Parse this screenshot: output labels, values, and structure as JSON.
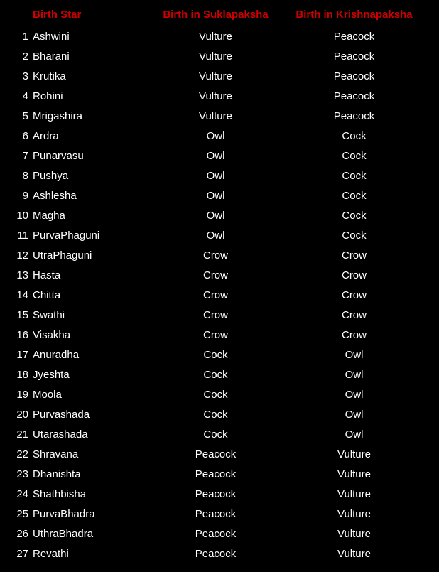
{
  "headers": {
    "star": "Birth Star",
    "sukla": "Birth in Suklapaksha",
    "krishna": "Birth in Krishnapaksha"
  },
  "rows": [
    {
      "num": "1",
      "star": "Ashwini",
      "sukla": "Vulture",
      "krishna": "Peacock"
    },
    {
      "num": "2",
      "star": "Bharani",
      "sukla": "Vulture",
      "krishna": "Peacock"
    },
    {
      "num": "3",
      "star": "Krutika",
      "sukla": "Vulture",
      "krishna": "Peacock"
    },
    {
      "num": "4",
      "star": "Rohini",
      "sukla": "Vulture",
      "krishna": "Peacock"
    },
    {
      "num": "5",
      "star": "Mrigashira",
      "sukla": "Vulture",
      "krishna": "Peacock"
    },
    {
      "num": "6",
      "star": "Ardra",
      "sukla": "Owl",
      "krishna": "Cock"
    },
    {
      "num": "7",
      "star": "Punarvasu",
      "sukla": "Owl",
      "krishna": "Cock"
    },
    {
      "num": "8",
      "star": "Pushya",
      "sukla": "Owl",
      "krishna": "Cock"
    },
    {
      "num": "9",
      "star": "Ashlesha",
      "sukla": "Owl",
      "krishna": "Cock"
    },
    {
      "num": "10",
      "star": "Magha",
      "sukla": "Owl",
      "krishna": "Cock"
    },
    {
      "num": "11",
      "star": "PurvaPhaguni",
      "sukla": "Owl",
      "krishna": "Cock"
    },
    {
      "num": "12",
      "star": "UtraPhaguni",
      "sukla": "Crow",
      "krishna": "Crow"
    },
    {
      "num": "13",
      "star": "Hasta",
      "sukla": "Crow",
      "krishna": "Crow"
    },
    {
      "num": "14",
      "star": "Chitta",
      "sukla": "Crow",
      "krishna": "Crow"
    },
    {
      "num": "15",
      "star": "Swathi",
      "sukla": "Crow",
      "krishna": "Crow"
    },
    {
      "num": "16",
      "star": "Visakha",
      "sukla": "Crow",
      "krishna": "Crow"
    },
    {
      "num": "17",
      "star": "Anuradha",
      "sukla": "Cock",
      "krishna": "Owl"
    },
    {
      "num": "18",
      "star": "Jyeshta",
      "sukla": "Cock",
      "krishna": "Owl"
    },
    {
      "num": "19",
      "star": "Moola",
      "sukla": "Cock",
      "krishna": "Owl"
    },
    {
      "num": "20",
      "star": "Purvashada",
      "sukla": "Cock",
      "krishna": "Owl"
    },
    {
      "num": "21",
      "star": "Utarashada",
      "sukla": "Cock",
      "krishna": "Owl"
    },
    {
      "num": "22",
      "star": "Shravana",
      "sukla": "Peacock",
      "krishna": "Vulture"
    },
    {
      "num": "23",
      "star": "Dhanishta",
      "sukla": "Peacock",
      "krishna": "Vulture"
    },
    {
      "num": "24",
      "star": "Shathbisha",
      "sukla": "Peacock",
      "krishna": "Vulture"
    },
    {
      "num": "25",
      "star": "PurvaBhadra",
      "sukla": "Peacock",
      "krishna": "Vulture"
    },
    {
      "num": "26",
      "star": "UthraBhadra",
      "sukla": "Peacock",
      "krishna": "Vulture"
    },
    {
      "num": "27",
      "star": "Revathi",
      "sukla": "Peacock",
      "krishna": "Vulture"
    }
  ],
  "colors": {
    "background": "#000000",
    "header_text": "#cc0000",
    "body_text": "#ffffff"
  },
  "typography": {
    "header_fontsize": 15,
    "body_fontsize": 15,
    "header_weight": "bold",
    "font_family": "Arial, sans-serif"
  },
  "layout": {
    "col_num_width": 28,
    "col_star_width": 160,
    "col_sukla_width": 195,
    "col_krishna_width": 195,
    "row_padding": 5.5
  }
}
